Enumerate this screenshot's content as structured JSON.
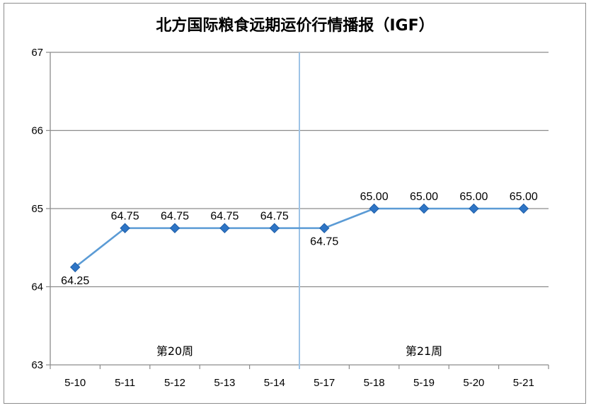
{
  "chart_data": {
    "type": "line",
    "title": "北方国际粮食远期运价行情播报（IGF）",
    "categories": [
      "5-10",
      "5-11",
      "5-12",
      "5-13",
      "5-14",
      "5-17",
      "5-18",
      "5-19",
      "5-20",
      "5-21"
    ],
    "series": [
      {
        "values": [
          64.25,
          64.75,
          64.75,
          64.75,
          64.75,
          64.75,
          65.0,
          65.0,
          65.0,
          65.0
        ],
        "labels": [
          "64.25",
          "64.75",
          "64.75",
          "64.75",
          "64.75",
          "64.75",
          "65.00",
          "65.00",
          "65.00",
          "65.00"
        ],
        "color": "#5b9bd5",
        "marker": "diamond"
      }
    ],
    "ylim": [
      63,
      67
    ],
    "yticks": [
      "63",
      "64",
      "65",
      "66",
      "67"
    ],
    "grid": true,
    "legend": "none",
    "annotations": [
      {
        "text": "第20周",
        "category_range": [
          0,
          4
        ]
      },
      {
        "text": "第21周",
        "category_range": [
          5,
          9
        ]
      }
    ],
    "divider_after_index": 4,
    "colors": {
      "line": "#5b9bd5",
      "marker_fill": "#2e75c6",
      "divider": "#9dc3e6",
      "grid": "#8c8c8c"
    }
  }
}
